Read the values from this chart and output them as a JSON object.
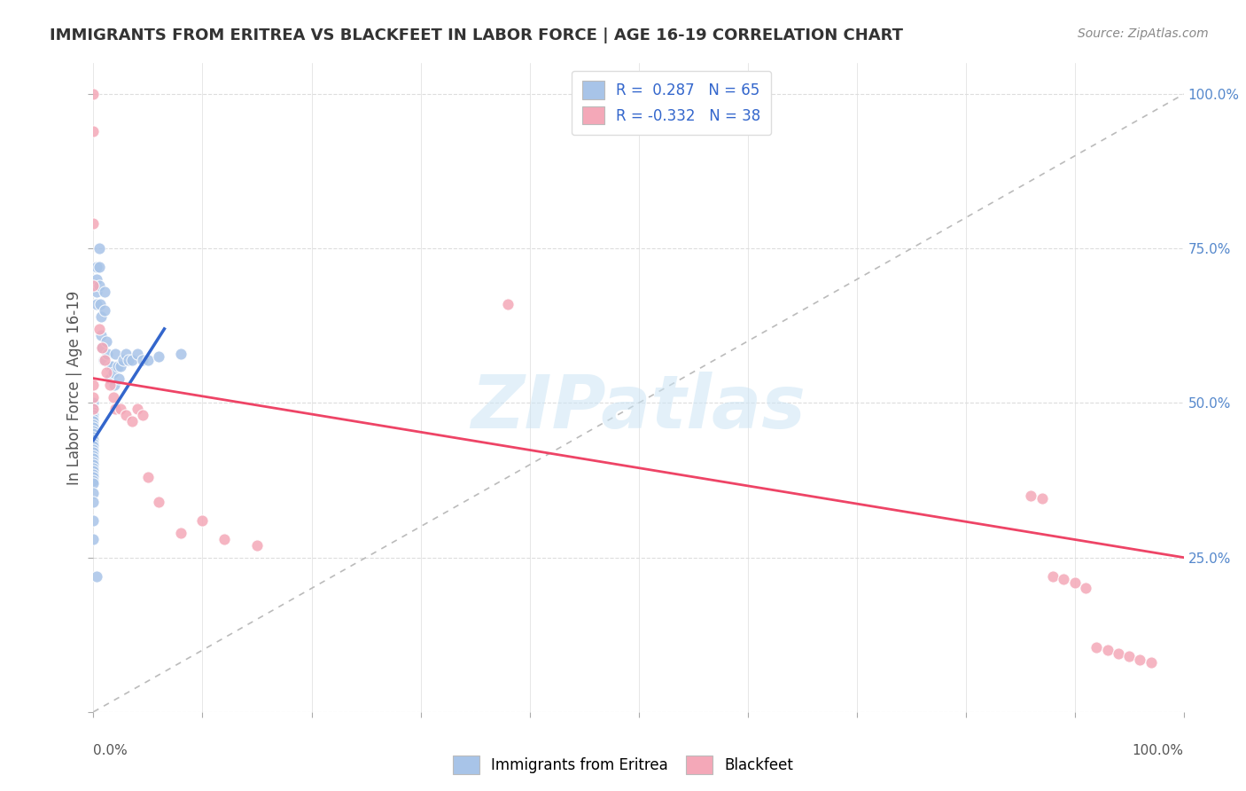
{
  "title": "IMMIGRANTS FROM ERITREA VS BLACKFEET IN LABOR FORCE | AGE 16-19 CORRELATION CHART",
  "source": "Source: ZipAtlas.com",
  "ylabel": "In Labor Force | Age 16-19",
  "xlim": [
    0.0,
    1.0
  ],
  "ylim": [
    0.0,
    1.05
  ],
  "r1": 0.287,
  "n1": 65,
  "r2": -0.332,
  "n2": 38,
  "color_eritrea": "#a8c4e8",
  "color_blackfeet": "#f4a8b8",
  "color_line_eritrea": "#3366cc",
  "color_line_blackfeet": "#ee4466",
  "color_diagonal": "#cccccc",
  "background": "#ffffff",
  "eritrea_x": [
    0.0,
    0.0,
    0.0,
    0.0,
    0.0,
    0.0,
    0.0,
    0.0,
    0.0,
    0.0,
    0.0,
    0.0,
    0.0,
    0.0,
    0.0,
    0.0,
    0.0,
    0.0,
    0.0,
    0.0,
    0.0,
    0.0,
    0.0,
    0.0,
    0.0,
    0.0,
    0.0,
    0.0,
    0.0,
    0.0,
    0.003,
    0.003,
    0.003,
    0.003,
    0.005,
    0.005,
    0.005,
    0.006,
    0.007,
    0.007,
    0.008,
    0.009,
    0.01,
    0.01,
    0.012,
    0.013,
    0.015,
    0.015,
    0.017,
    0.018,
    0.019,
    0.02,
    0.022,
    0.023,
    0.025,
    0.027,
    0.03,
    0.032,
    0.035,
    0.04,
    0.045,
    0.05,
    0.06,
    0.08,
    0.003
  ],
  "eritrea_y": [
    0.5,
    0.49,
    0.485,
    0.48,
    0.475,
    0.47,
    0.465,
    0.46,
    0.455,
    0.45,
    0.445,
    0.44,
    0.435,
    0.43,
    0.425,
    0.42,
    0.415,
    0.41,
    0.405,
    0.4,
    0.395,
    0.39,
    0.385,
    0.38,
    0.375,
    0.37,
    0.355,
    0.34,
    0.31,
    0.28,
    0.72,
    0.7,
    0.68,
    0.66,
    0.75,
    0.72,
    0.69,
    0.66,
    0.64,
    0.61,
    0.59,
    0.57,
    0.68,
    0.65,
    0.6,
    0.58,
    0.56,
    0.54,
    0.56,
    0.55,
    0.53,
    0.58,
    0.56,
    0.54,
    0.56,
    0.57,
    0.58,
    0.57,
    0.57,
    0.58,
    0.57,
    0.57,
    0.575,
    0.58,
    0.22
  ],
  "blackfeet_x": [
    0.0,
    0.0,
    0.0,
    0.0,
    0.0,
    0.0,
    0.0,
    0.005,
    0.008,
    0.01,
    0.012,
    0.015,
    0.018,
    0.02,
    0.025,
    0.03,
    0.035,
    0.04,
    0.045,
    0.05,
    0.06,
    0.08,
    0.1,
    0.12,
    0.15,
    0.38,
    0.86,
    0.87,
    0.88,
    0.89,
    0.9,
    0.91,
    0.92,
    0.93,
    0.94,
    0.95,
    0.96,
    0.97
  ],
  "blackfeet_y": [
    1.0,
    0.94,
    0.79,
    0.69,
    0.53,
    0.51,
    0.49,
    0.62,
    0.59,
    0.57,
    0.55,
    0.53,
    0.51,
    0.49,
    0.49,
    0.48,
    0.47,
    0.49,
    0.48,
    0.38,
    0.34,
    0.29,
    0.31,
    0.28,
    0.27,
    0.66,
    0.35,
    0.345,
    0.22,
    0.215,
    0.21,
    0.2,
    0.105,
    0.1,
    0.095,
    0.09,
    0.085,
    0.08
  ],
  "line_eritrea_x0": 0.0,
  "line_eritrea_x1": 0.065,
  "line_eritrea_y0": 0.44,
  "line_eritrea_y1": 0.62,
  "line_blackfeet_x0": 0.0,
  "line_blackfeet_x1": 1.0,
  "line_blackfeet_y0": 0.54,
  "line_blackfeet_y1": 0.25
}
